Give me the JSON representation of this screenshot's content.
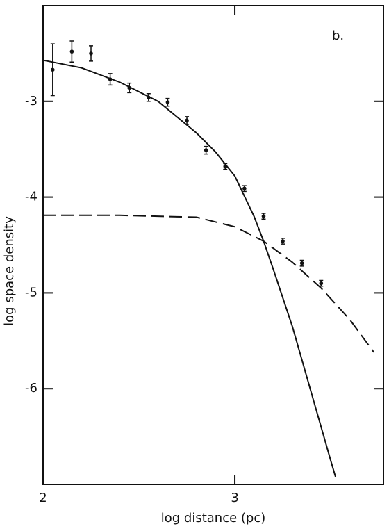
{
  "chart_data": {
    "type": "line",
    "annotation": "b.",
    "x_label": "log distance (pc)",
    "y_label": "log space density",
    "xlim": [
      2,
      3.775
    ],
    "xticks": [
      2,
      3
    ],
    "ylim": [
      -7,
      -2
    ],
    "yticks": [
      -3,
      -4,
      -5,
      -6
    ],
    "color": "#111111",
    "series": [
      {
        "style": "solid",
        "x": [
          2.0,
          2.2,
          2.4,
          2.6,
          2.8,
          2.9,
          3.0,
          3.1,
          3.15,
          3.2,
          3.3,
          3.4,
          3.5,
          3.525
        ],
        "values": [
          -2.57,
          -2.65,
          -2.8,
          -3.0,
          -3.33,
          -3.53,
          -3.78,
          -4.2,
          -4.46,
          -4.75,
          -5.35,
          -6.05,
          -6.75,
          -6.92
        ]
      },
      {
        "style": "dashed",
        "x": [
          2.0,
          2.4,
          2.8,
          3.0,
          3.15,
          3.3,
          3.45,
          3.6,
          3.725
        ],
        "values": [
          -4.19,
          -4.19,
          -4.21,
          -4.31,
          -4.46,
          -4.68,
          -4.95,
          -5.28,
          -5.62
        ]
      },
      {
        "style": "points",
        "x": [
          2.05,
          2.15,
          2.25,
          2.35,
          2.45,
          2.55,
          2.65,
          2.75,
          2.85,
          2.95,
          3.05,
          3.15,
          3.25,
          3.35,
          3.45
        ],
        "values": [
          -2.67,
          -2.48,
          -2.5,
          -2.77,
          -2.86,
          -2.96,
          -3.01,
          -3.2,
          -3.51,
          -3.68,
          -3.91,
          -4.2,
          -4.46,
          -4.69,
          -4.9
        ],
        "errors": [
          0.27,
          0.11,
          0.08,
          0.06,
          0.05,
          0.04,
          0.04,
          0.04,
          0.04,
          0.03,
          0.03,
          0.03,
          0.03,
          0.03,
          0.03
        ]
      }
    ]
  }
}
